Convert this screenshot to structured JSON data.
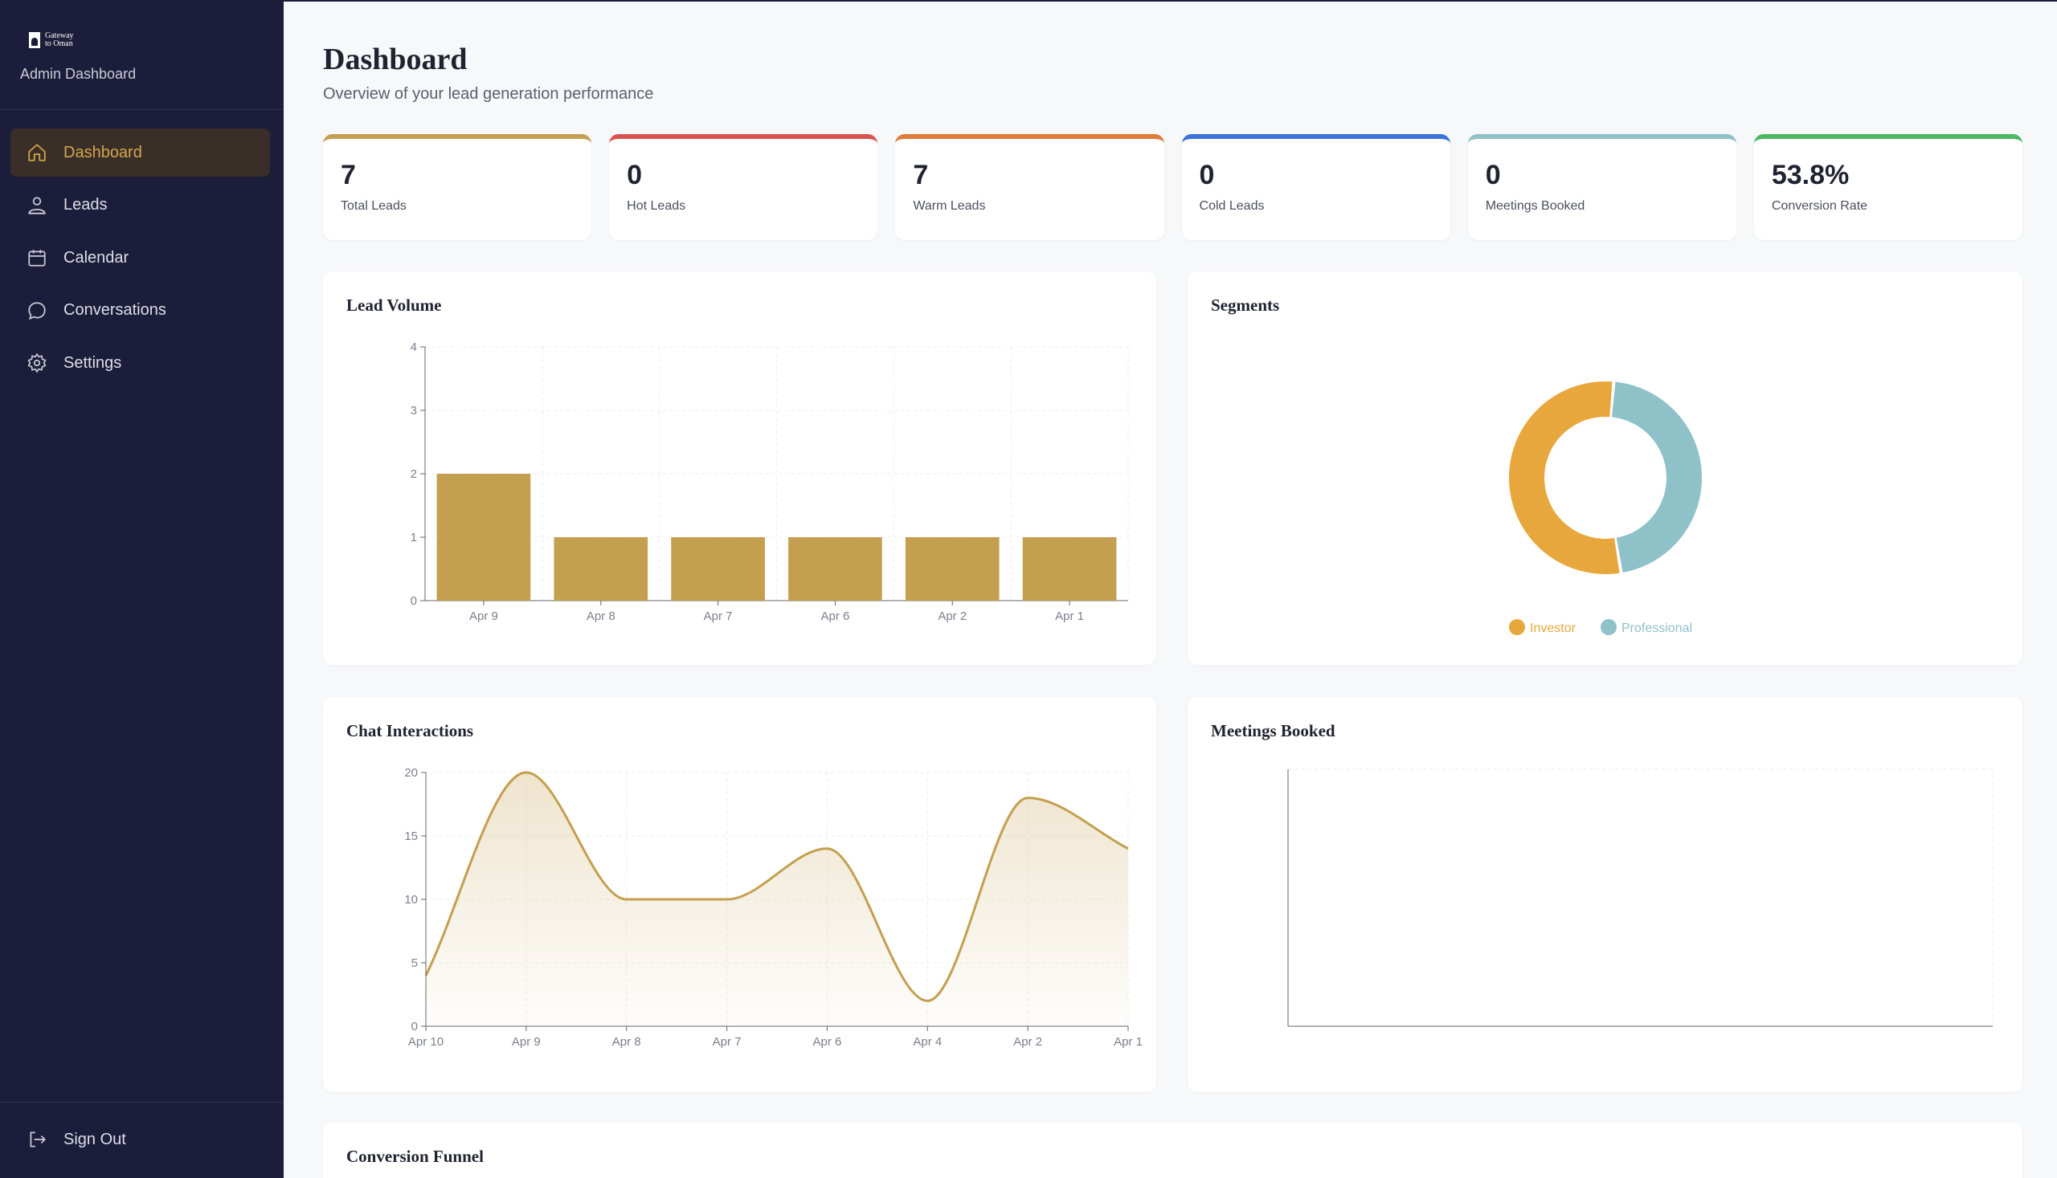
{
  "brand": {
    "line1": "Gateway",
    "line2": "to Oman",
    "subtitle": "Admin Dashboard"
  },
  "nav": [
    {
      "label": "Dashboard",
      "icon": "home-icon",
      "active": true
    },
    {
      "label": "Leads",
      "icon": "users-icon",
      "active": false
    },
    {
      "label": "Calendar",
      "icon": "calendar-icon",
      "active": false
    },
    {
      "label": "Conversations",
      "icon": "chat-bubble-icon",
      "active": false
    },
    {
      "label": "Settings",
      "icon": "gear-icon",
      "active": false
    }
  ],
  "signout": {
    "label": "Sign Out",
    "icon": "sign-out-icon"
  },
  "header": {
    "title": "Dashboard",
    "subtitle": "Overview of your lead generation performance"
  },
  "stats": [
    {
      "value": "7",
      "label": "Total Leads",
      "color": "#c49f4f"
    },
    {
      "value": "0",
      "label": "Hot Leads",
      "color": "#d9534f"
    },
    {
      "value": "7",
      "label": "Warm Leads",
      "color": "#e07b39"
    },
    {
      "value": "0",
      "label": "Cold Leads",
      "color": "#3b73d9"
    },
    {
      "value": "0",
      "label": "Meetings Booked",
      "color": "#8ec1c8"
    },
    {
      "value": "53.8%",
      "label": "Conversion Rate",
      "color": "#4cb861"
    }
  ],
  "cards": {
    "lead_volume": "Lead Volume",
    "segments": "Segments",
    "chat_interactions": "Chat Interactions",
    "meetings_booked": "Meetings Booked",
    "conversion_funnel": "Conversion Funnel"
  },
  "chart_data": [
    {
      "type": "bar",
      "title": "Lead Volume",
      "categories": [
        "Apr 9",
        "Apr 8",
        "Apr 7",
        "Apr 6",
        "Apr 2",
        "Apr 1"
      ],
      "values": [
        2,
        1,
        1,
        1,
        1,
        1
      ],
      "ylim": [
        0,
        4
      ],
      "yticks": [
        0,
        1,
        2,
        3,
        4
      ],
      "color": "#c49f4f",
      "grid": true
    },
    {
      "type": "pie",
      "title": "Segments",
      "donut": true,
      "labels": [
        "Investor",
        "Professional"
      ],
      "values": [
        54,
        46
      ],
      "colors": [
        "#e8a73c",
        "#8ec1c8"
      ],
      "legend": "bottom"
    },
    {
      "type": "area",
      "title": "Chat Interactions",
      "categories": [
        "Apr 10",
        "Apr 9",
        "Apr 8",
        "Apr 7",
        "Apr 6",
        "Apr 4",
        "Apr 2",
        "Apr 1"
      ],
      "values": [
        4,
        20,
        10,
        10,
        14,
        2,
        18,
        14
      ],
      "ylim": [
        0,
        20
      ],
      "yticks": [
        0,
        5,
        10,
        15,
        20
      ],
      "color": "#c49f4f",
      "grid": true
    },
    {
      "type": "line",
      "title": "Meetings Booked",
      "categories": [],
      "values": [],
      "grid": true
    }
  ]
}
